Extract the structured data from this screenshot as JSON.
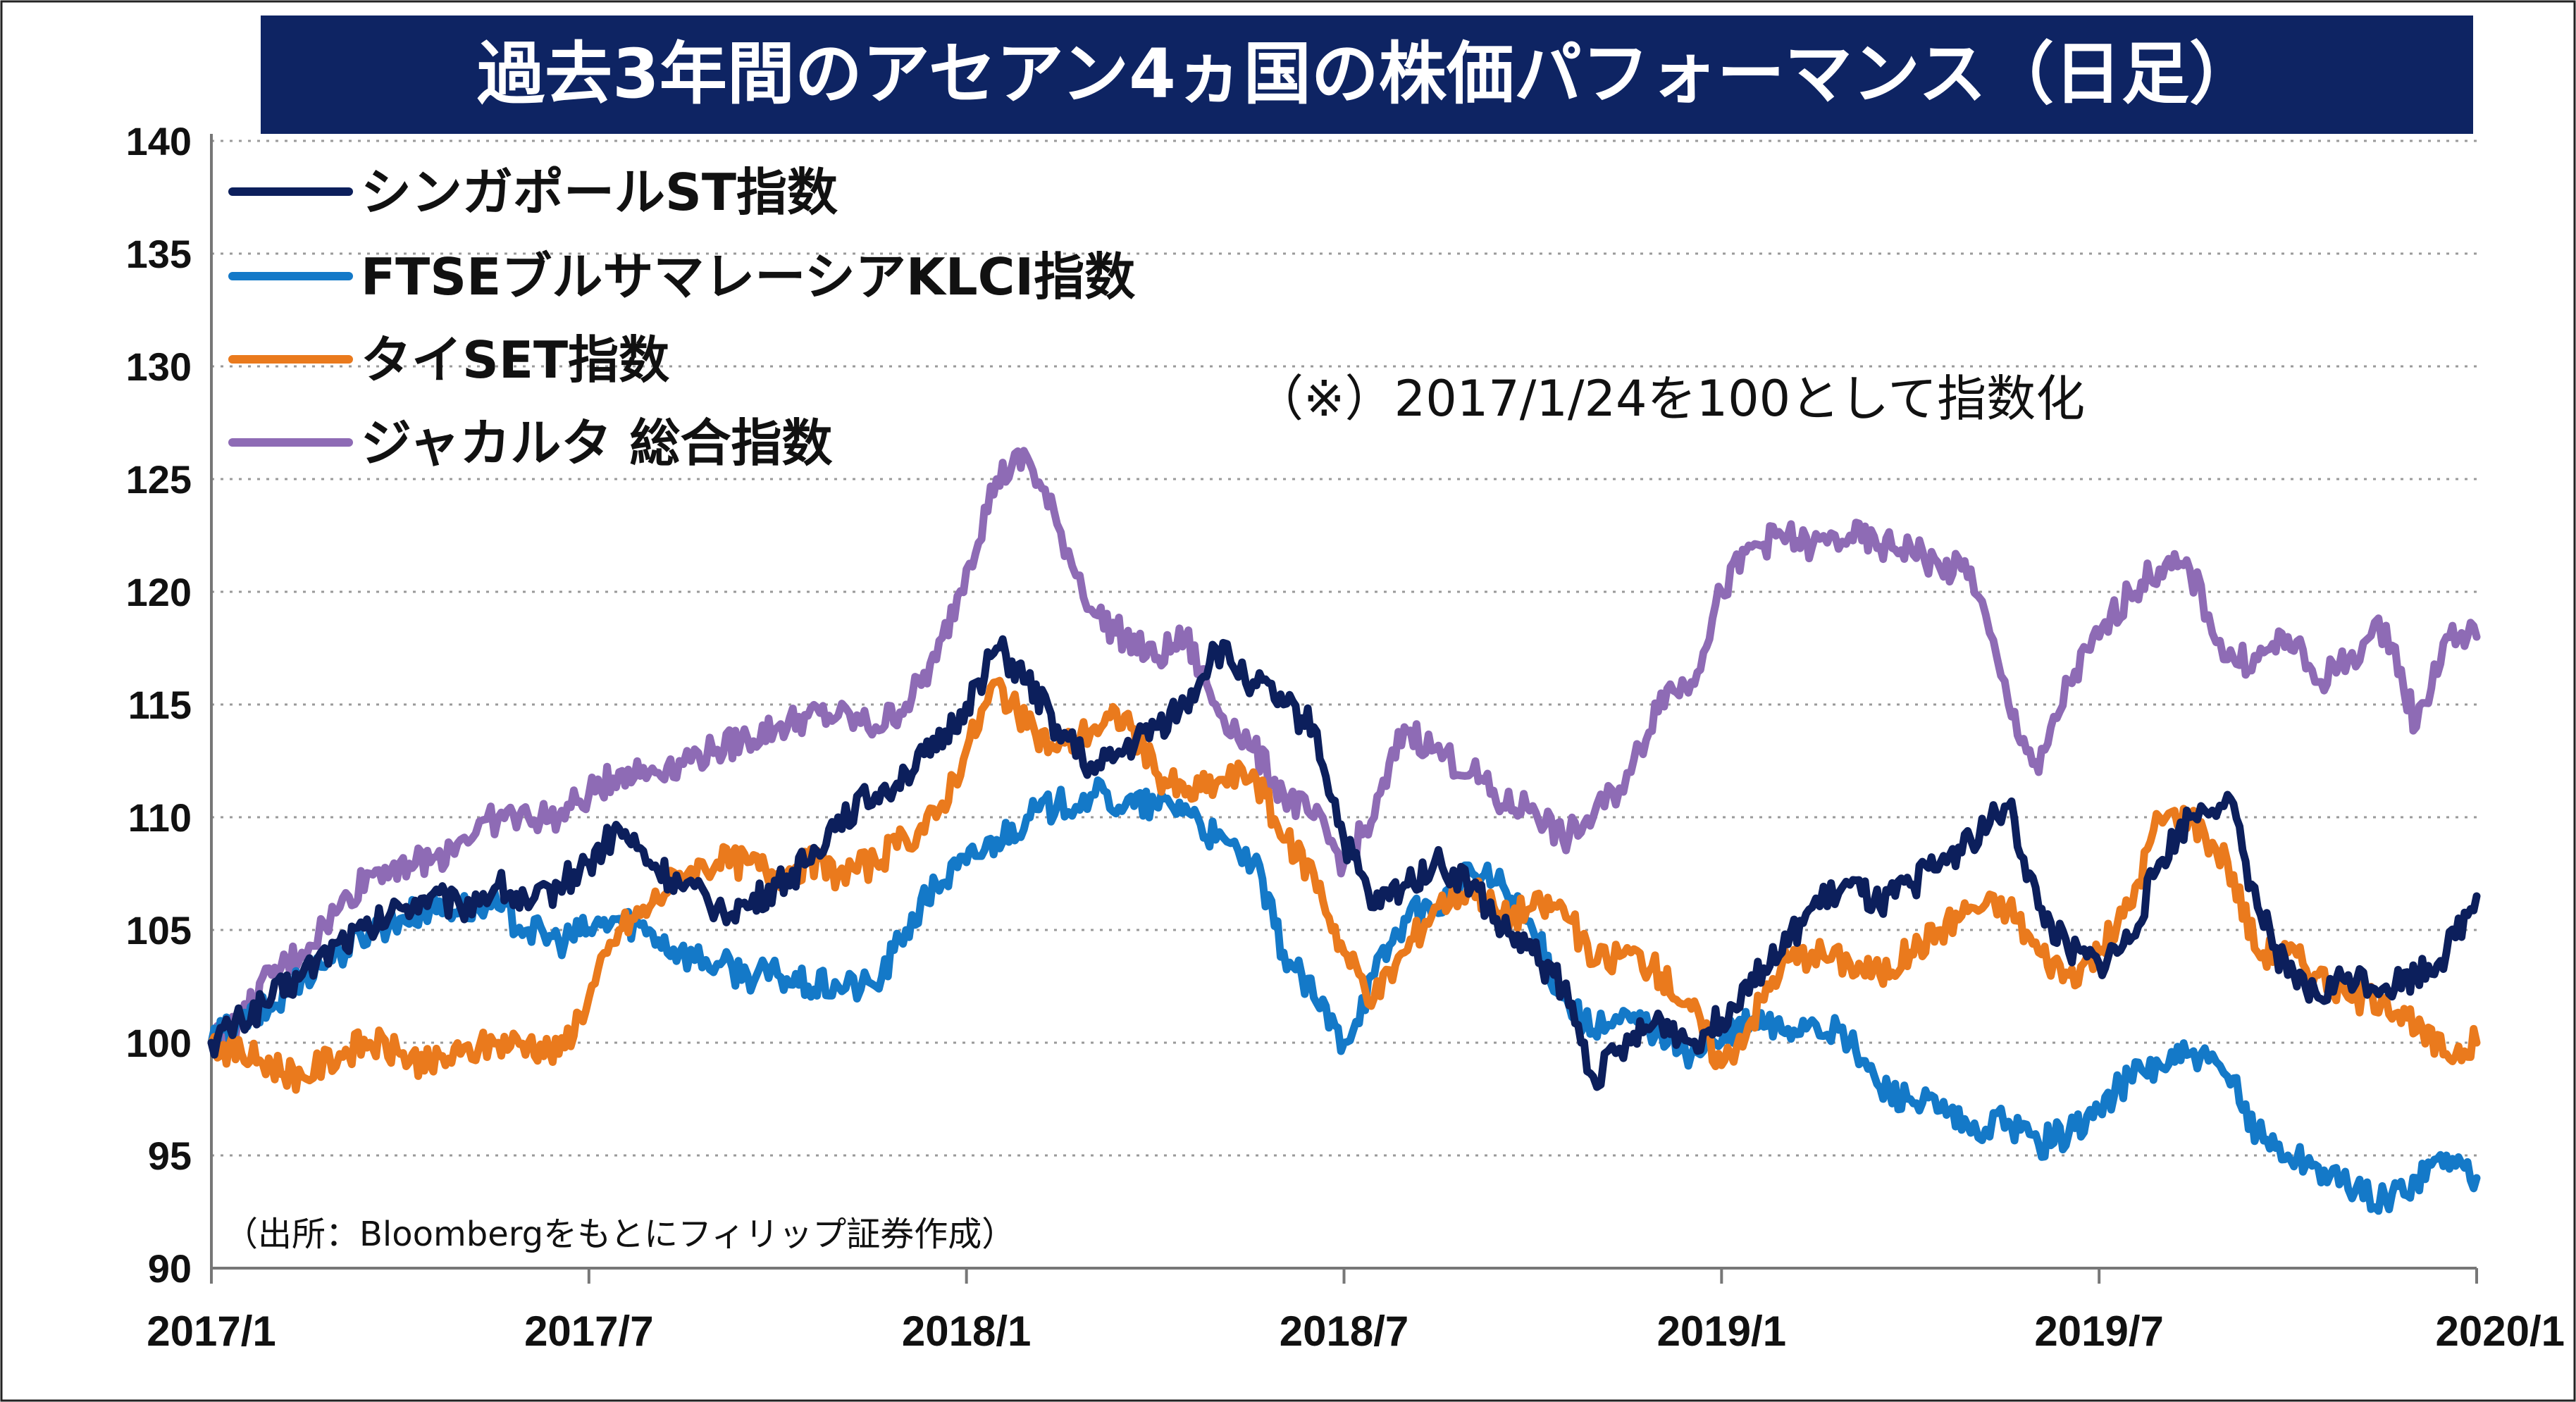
{
  "title": "過去3年間のアセアン4ヵ国の株価パフォーマンス（日足）",
  "note": "（※）2017/1/24を100として指数化",
  "source": "（出所：Bloombergをもとにフィリップ証券作成）",
  "colors": {
    "title_bg": "#0e2463",
    "singapore": "#0c1f5c",
    "malaysia": "#1479c8",
    "thai": "#ea7a1d",
    "jakarta": "#8e6bb5",
    "grid": "#9a9a9a"
  },
  "chart_data": {
    "type": "line",
    "xlabel": "",
    "ylabel": "",
    "ylim": [
      90,
      140
    ],
    "yticks": [
      90,
      95,
      100,
      105,
      110,
      115,
      120,
      125,
      130,
      135,
      140
    ],
    "xlim": [
      2017.0,
      2020.0
    ],
    "x_tick_labels": [
      "2017/1",
      "2017/7",
      "2018/1",
      "2018/7",
      "2019/1",
      "2019/7",
      "2020/1"
    ],
    "x_tick_values": [
      2017.0,
      2017.5,
      2018.0,
      2018.5,
      2019.0,
      2019.5,
      2020.0
    ],
    "grid": "horizontal-dotted",
    "legend_position": "top-left",
    "series": [
      {
        "name": "シンガポールST指数",
        "color": "#0c1f5c",
        "points": [
          [
            2017.0,
            100
          ],
          [
            2017.04,
            101
          ],
          [
            2017.08,
            102
          ],
          [
            2017.12,
            103
          ],
          [
            2017.17,
            104.5
          ],
          [
            2017.21,
            105
          ],
          [
            2017.25,
            106
          ],
          [
            2017.29,
            106.5
          ],
          [
            2017.33,
            106
          ],
          [
            2017.38,
            107
          ],
          [
            2017.42,
            106
          ],
          [
            2017.46,
            107
          ],
          [
            2017.5,
            108
          ],
          [
            2017.54,
            109.5
          ],
          [
            2017.58,
            108
          ],
          [
            2017.62,
            107
          ],
          [
            2017.67,
            106
          ],
          [
            2017.71,
            106
          ],
          [
            2017.75,
            107
          ],
          [
            2017.79,
            108
          ],
          [
            2017.83,
            110
          ],
          [
            2017.88,
            111
          ],
          [
            2017.92,
            112
          ],
          [
            2017.96,
            113
          ],
          [
            2018.0,
            115
          ],
          [
            2018.04,
            117.5
          ],
          [
            2018.08,
            116
          ],
          [
            2018.12,
            114
          ],
          [
            2018.17,
            112
          ],
          [
            2018.21,
            113
          ],
          [
            2018.25,
            114
          ],
          [
            2018.29,
            115
          ],
          [
            2018.33,
            117.5
          ],
          [
            2018.38,
            116
          ],
          [
            2018.42,
            115
          ],
          [
            2018.46,
            114
          ],
          [
            2018.5,
            109
          ],
          [
            2018.54,
            106
          ],
          [
            2018.58,
            107
          ],
          [
            2018.62,
            108
          ],
          [
            2018.67,
            107
          ],
          [
            2018.71,
            105
          ],
          [
            2018.75,
            104
          ],
          [
            2018.79,
            102.5
          ],
          [
            2018.83,
            98.5
          ],
          [
            2018.88,
            100
          ],
          [
            2018.92,
            101
          ],
          [
            2018.96,
            100
          ],
          [
            2019.0,
            101
          ],
          [
            2019.04,
            103
          ],
          [
            2019.08,
            104
          ],
          [
            2019.12,
            106
          ],
          [
            2019.17,
            107
          ],
          [
            2019.21,
            106
          ],
          [
            2019.25,
            107
          ],
          [
            2019.29,
            108
          ],
          [
            2019.33,
            109
          ],
          [
            2019.38,
            110.5
          ],
          [
            2019.42,
            106
          ],
          [
            2019.46,
            104
          ],
          [
            2019.5,
            103.5
          ],
          [
            2019.54,
            104.5
          ],
          [
            2019.58,
            108
          ],
          [
            2019.62,
            110
          ],
          [
            2019.67,
            111
          ],
          [
            2019.71,
            106
          ],
          [
            2019.75,
            103
          ],
          [
            2019.79,
            102
          ],
          [
            2019.83,
            103
          ],
          [
            2019.88,
            102.5
          ],
          [
            2019.92,
            103
          ],
          [
            2019.96,
            104
          ],
          [
            2020.0,
            106.5
          ]
        ]
      },
      {
        "name": "FTSEブルサマレーシアKLCI指数",
        "color": "#1479c8",
        "points": [
          [
            2017.0,
            100
          ],
          [
            2017.04,
            101
          ],
          [
            2017.08,
            101.5
          ],
          [
            2017.12,
            103
          ],
          [
            2017.17,
            104
          ],
          [
            2017.21,
            105
          ],
          [
            2017.25,
            105.5
          ],
          [
            2017.29,
            106
          ],
          [
            2017.33,
            106
          ],
          [
            2017.38,
            106
          ],
          [
            2017.42,
            105
          ],
          [
            2017.46,
            104.5
          ],
          [
            2017.5,
            105
          ],
          [
            2017.54,
            105.5
          ],
          [
            2017.58,
            105
          ],
          [
            2017.62,
            104
          ],
          [
            2017.67,
            103.5
          ],
          [
            2017.71,
            103
          ],
          [
            2017.75,
            103
          ],
          [
            2017.79,
            102.5
          ],
          [
            2017.83,
            102.5
          ],
          [
            2017.88,
            102.5
          ],
          [
            2017.92,
            105
          ],
          [
            2017.96,
            107
          ],
          [
            2018.0,
            108
          ],
          [
            2018.04,
            109
          ],
          [
            2018.08,
            110
          ],
          [
            2018.12,
            110.5
          ],
          [
            2018.17,
            111
          ],
          [
            2018.21,
            110.5
          ],
          [
            2018.25,
            110.5
          ],
          [
            2018.29,
            110.5
          ],
          [
            2018.33,
            109
          ],
          [
            2018.38,
            108
          ],
          [
            2018.42,
            104
          ],
          [
            2018.46,
            102
          ],
          [
            2018.5,
            100
          ],
          [
            2018.54,
            103
          ],
          [
            2018.58,
            105.5
          ],
          [
            2018.62,
            106
          ],
          [
            2018.67,
            107.5
          ],
          [
            2018.71,
            107
          ],
          [
            2018.75,
            105
          ],
          [
            2018.79,
            102
          ],
          [
            2018.83,
            100.5
          ],
          [
            2018.88,
            101
          ],
          [
            2018.92,
            100.5
          ],
          [
            2018.96,
            99.5
          ],
          [
            2019.0,
            100
          ],
          [
            2019.04,
            101
          ],
          [
            2019.08,
            100.5
          ],
          [
            2019.12,
            101
          ],
          [
            2019.17,
            100
          ],
          [
            2019.21,
            98
          ],
          [
            2019.25,
            97.5
          ],
          [
            2019.29,
            97
          ],
          [
            2019.33,
            96
          ],
          [
            2019.38,
            96.5
          ],
          [
            2019.42,
            95.5
          ],
          [
            2019.46,
            96
          ],
          [
            2019.5,
            97
          ],
          [
            2019.54,
            98.5
          ],
          [
            2019.58,
            99
          ],
          [
            2019.62,
            99.5
          ],
          [
            2019.67,
            98.5
          ],
          [
            2019.71,
            96
          ],
          [
            2019.75,
            95
          ],
          [
            2019.79,
            94.5
          ],
          [
            2019.83,
            93.5
          ],
          [
            2019.88,
            93
          ],
          [
            2019.92,
            94
          ],
          [
            2019.96,
            95
          ],
          [
            2020.0,
            94
          ]
        ]
      },
      {
        "name": "タイSET指数",
        "color": "#ea7a1d",
        "points": [
          [
            2017.0,
            100
          ],
          [
            2017.04,
            99.5
          ],
          [
            2017.08,
            99
          ],
          [
            2017.12,
            98.5
          ],
          [
            2017.17,
            99.5
          ],
          [
            2017.21,
            100
          ],
          [
            2017.25,
            99.5
          ],
          [
            2017.29,
            99
          ],
          [
            2017.33,
            99.5
          ],
          [
            2017.38,
            100
          ],
          [
            2017.42,
            100
          ],
          [
            2017.46,
            99.5
          ],
          [
            2017.5,
            102
          ],
          [
            2017.54,
            105
          ],
          [
            2017.58,
            106
          ],
          [
            2017.62,
            107.5
          ],
          [
            2017.67,
            108
          ],
          [
            2017.71,
            108
          ],
          [
            2017.75,
            107.5
          ],
          [
            2017.79,
            108
          ],
          [
            2017.83,
            107.5
          ],
          [
            2017.88,
            108
          ],
          [
            2017.92,
            109
          ],
          [
            2017.96,
            110
          ],
          [
            2018.0,
            113
          ],
          [
            2018.04,
            116
          ],
          [
            2018.08,
            114
          ],
          [
            2018.12,
            113
          ],
          [
            2018.17,
            114
          ],
          [
            2018.21,
            114.5
          ],
          [
            2018.25,
            112
          ],
          [
            2018.29,
            111
          ],
          [
            2018.33,
            111.5
          ],
          [
            2018.38,
            112
          ],
          [
            2018.42,
            109
          ],
          [
            2018.46,
            107.5
          ],
          [
            2018.5,
            104
          ],
          [
            2018.54,
            102
          ],
          [
            2018.58,
            104
          ],
          [
            2018.62,
            106
          ],
          [
            2018.67,
            107
          ],
          [
            2018.71,
            105.5
          ],
          [
            2018.75,
            106
          ],
          [
            2018.79,
            106
          ],
          [
            2018.83,
            103.5
          ],
          [
            2018.88,
            104
          ],
          [
            2018.92,
            103
          ],
          [
            2018.96,
            101.5
          ],
          [
            2019.0,
            99
          ],
          [
            2019.04,
            101
          ],
          [
            2019.08,
            103.5
          ],
          [
            2019.12,
            104
          ],
          [
            2019.17,
            103.5
          ],
          [
            2019.21,
            103
          ],
          [
            2019.25,
            104
          ],
          [
            2019.29,
            105
          ],
          [
            2019.33,
            106
          ],
          [
            2019.38,
            106
          ],
          [
            2019.42,
            104
          ],
          [
            2019.46,
            103
          ],
          [
            2019.5,
            104
          ],
          [
            2019.54,
            106
          ],
          [
            2019.58,
            110
          ],
          [
            2019.62,
            110
          ],
          [
            2019.67,
            108
          ],
          [
            2019.71,
            104
          ],
          [
            2019.75,
            104
          ],
          [
            2019.79,
            103
          ],
          [
            2019.83,
            102
          ],
          [
            2019.88,
            102
          ],
          [
            2019.92,
            100.5
          ],
          [
            2019.96,
            99.5
          ],
          [
            2020.0,
            100
          ]
        ]
      },
      {
        "name": "ジャカルタ 総合指数",
        "color": "#8e6bb5",
        "points": [
          [
            2017.0,
            100
          ],
          [
            2017.04,
            101
          ],
          [
            2017.08,
            103
          ],
          [
            2017.12,
            104
          ],
          [
            2017.17,
            106
          ],
          [
            2017.21,
            107.5
          ],
          [
            2017.25,
            108
          ],
          [
            2017.29,
            108
          ],
          [
            2017.33,
            109
          ],
          [
            2017.38,
            110
          ],
          [
            2017.42,
            110
          ],
          [
            2017.46,
            110
          ],
          [
            2017.5,
            111
          ],
          [
            2017.54,
            112
          ],
          [
            2017.58,
            112
          ],
          [
            2017.62,
            112.5
          ],
          [
            2017.67,
            113
          ],
          [
            2017.71,
            113.5
          ],
          [
            2017.75,
            114
          ],
          [
            2017.79,
            114.5
          ],
          [
            2017.83,
            114.5
          ],
          [
            2017.88,
            114
          ],
          [
            2017.92,
            115
          ],
          [
            2017.96,
            117
          ],
          [
            2018.0,
            121
          ],
          [
            2018.04,
            125
          ],
          [
            2018.08,
            126
          ],
          [
            2018.12,
            123
          ],
          [
            2018.17,
            119
          ],
          [
            2018.21,
            118
          ],
          [
            2018.25,
            117
          ],
          [
            2018.29,
            118
          ],
          [
            2018.33,
            115
          ],
          [
            2018.38,
            113
          ],
          [
            2018.42,
            111
          ],
          [
            2018.46,
            110
          ],
          [
            2018.5,
            108
          ],
          [
            2018.54,
            110
          ],
          [
            2018.58,
            114
          ],
          [
            2018.62,
            113
          ],
          [
            2018.67,
            112
          ],
          [
            2018.71,
            110.5
          ],
          [
            2018.75,
            110.5
          ],
          [
            2018.79,
            109
          ],
          [
            2018.83,
            110
          ],
          [
            2018.88,
            112
          ],
          [
            2018.92,
            115.5
          ],
          [
            2018.96,
            116
          ],
          [
            2019.0,
            120
          ],
          [
            2019.04,
            122
          ],
          [
            2019.08,
            122.5
          ],
          [
            2019.12,
            122
          ],
          [
            2019.17,
            122.5
          ],
          [
            2019.21,
            122
          ],
          [
            2019.25,
            122
          ],
          [
            2019.29,
            121
          ],
          [
            2019.33,
            121
          ],
          [
            2019.38,
            115
          ],
          [
            2019.42,
            112
          ],
          [
            2019.46,
            116
          ],
          [
            2019.5,
            118
          ],
          [
            2019.54,
            120
          ],
          [
            2019.58,
            121
          ],
          [
            2019.62,
            121
          ],
          [
            2019.67,
            117
          ],
          [
            2019.71,
            117
          ],
          [
            2019.75,
            118
          ],
          [
            2019.79,
            116
          ],
          [
            2019.83,
            117
          ],
          [
            2019.88,
            118.5
          ],
          [
            2019.92,
            114
          ],
          [
            2019.96,
            118
          ],
          [
            2020.0,
            118
          ]
        ]
      }
    ]
  }
}
